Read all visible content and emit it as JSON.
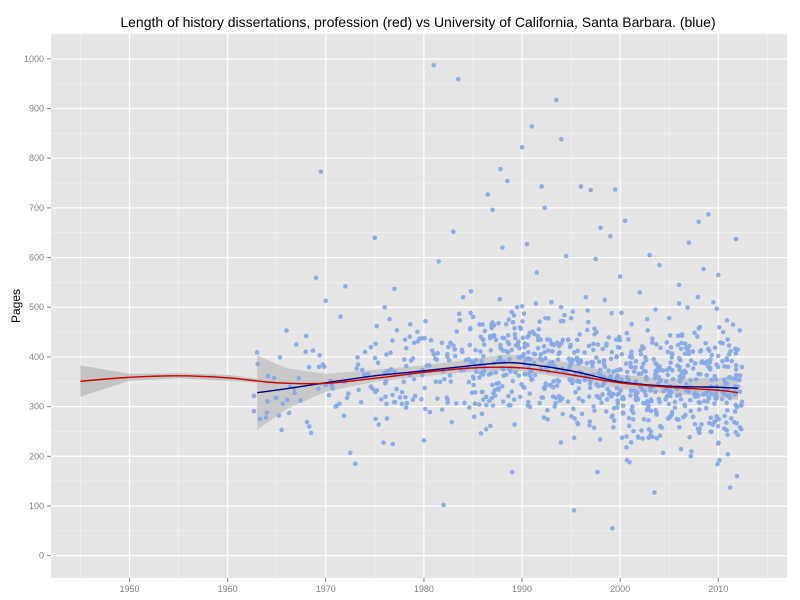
{
  "chart_data": {
    "type": "scatter",
    "title": "Length of history dissertations, profession (red) vs University of California, Santa Barbara. (blue)",
    "xlabel": "",
    "ylabel": "Pages",
    "xlim": [
      1942,
      2017
    ],
    "ylim": [
      -45,
      1050
    ],
    "x_ticks": [
      1950,
      1960,
      1970,
      1980,
      1990,
      2000,
      2010
    ],
    "y_ticks": [
      0,
      100,
      200,
      300,
      400,
      500,
      600,
      700,
      800,
      900,
      1000
    ],
    "grid": true,
    "legend": "none",
    "colors": {
      "panel": "#e5e5e5",
      "grid_major": "#ffffff",
      "grid_minor": "#f2f2f2",
      "points": "#86a9e8",
      "profession_line": "#cc0000",
      "ucsb_line": "#000080",
      "confidence_band": "#bdbdbd"
    },
    "series": [
      {
        "kind": "smooth",
        "color": "#cc0000",
        "x": [
          1945,
          1950,
          1955,
          1960,
          1965,
          1970,
          1975,
          1980,
          1985,
          1990,
          1995,
          2000,
          2005,
          2010,
          2012
        ],
        "y": [
          351,
          359,
          362,
          358,
          348,
          347,
          357,
          369,
          378,
          378,
          364,
          348,
          339,
          333,
          328
        ],
        "band_lower": [
          320,
          352,
          357,
          352,
          345,
          344,
          354,
          367,
          375,
          375,
          361,
          345,
          336,
          328,
          320
        ],
        "band_upper": [
          383,
          366,
          367,
          364,
          351,
          350,
          360,
          371,
          381,
          381,
          367,
          351,
          342,
          338,
          336
        ]
      },
      {
        "kind": "smooth",
        "color": "#000080",
        "x": [
          1963,
          1966,
          1970,
          1975,
          1980,
          1985,
          1988,
          1990,
          1995,
          2000,
          2005,
          2010,
          2012
        ],
        "y": [
          328,
          336,
          348,
          362,
          372,
          383,
          388,
          387,
          372,
          350,
          341,
          339,
          337
        ],
        "band_lower": [
          253,
          295,
          330,
          350,
          361,
          370,
          372,
          371,
          356,
          336,
          326,
          320,
          313
        ],
        "band_upper": [
          403,
          377,
          366,
          374,
          383,
          396,
          404,
          403,
          388,
          364,
          356,
          358,
          361
        ]
      }
    ],
    "points": {
      "highlighted": [
        [
          1963,
          409
        ],
        [
          1965.5,
          253
        ],
        [
          1966,
          453
        ],
        [
          1967,
          425
        ],
        [
          1968,
          442
        ],
        [
          1968.5,
          247
        ],
        [
          1969,
          559
        ],
        [
          1969.5,
          773
        ],
        [
          1970,
          513
        ],
        [
          1970.5,
          352
        ],
        [
          1971,
          300
        ],
        [
          1971.5,
          481
        ],
        [
          1972,
          542
        ],
        [
          1972.5,
          207
        ],
        [
          1973,
          185
        ],
        [
          1974,
          410
        ],
        [
          1975,
          640
        ],
        [
          1975.2,
          462
        ],
        [
          1976,
          500
        ],
        [
          1976.5,
          476
        ],
        [
          1977,
          537
        ],
        [
          1978,
          395
        ],
        [
          1979,
          355
        ],
        [
          1980,
          232
        ],
        [
          1981,
          987
        ],
        [
          1981.5,
          592
        ],
        [
          1982.5,
          420
        ],
        [
          1982,
          102
        ],
        [
          1983,
          652
        ],
        [
          1983.5,
          959
        ],
        [
          1984,
          520
        ],
        [
          1985,
          360
        ],
        [
          1986,
          435
        ],
        [
          1986.5,
          727
        ],
        [
          1987,
          696
        ],
        [
          1987.8,
          778
        ],
        [
          1988,
          620
        ],
        [
          1988.5,
          754
        ],
        [
          1989,
          168
        ],
        [
          1989.5,
          500
        ],
        [
          1990,
          822
        ],
        [
          1990.5,
          627
        ],
        [
          1991,
          864
        ],
        [
          1991.5,
          570
        ],
        [
          1992,
          743
        ],
        [
          1992.3,
          700
        ],
        [
          1993,
          510
        ],
        [
          1993.5,
          917
        ],
        [
          1994,
          838
        ],
        [
          1994.5,
          603
        ],
        [
          1995,
          478
        ],
        [
          1995.3,
          91
        ],
        [
          1996,
          743
        ],
        [
          1996.5,
          520
        ],
        [
          1997,
          736
        ],
        [
          1997.5,
          597
        ],
        [
          1998,
          660
        ],
        [
          1999,
          643
        ],
        [
          1999.2,
          55
        ],
        [
          1999.5,
          737
        ],
        [
          2000,
          562
        ],
        [
          2000.5,
          674
        ],
        [
          2001,
          400
        ],
        [
          2002,
          530
        ],
        [
          2002.5,
          330
        ],
        [
          2003,
          605
        ],
        [
          2003.5,
          127
        ],
        [
          2004,
          585
        ],
        [
          2005,
          478
        ],
        [
          2006,
          545
        ],
        [
          2007,
          630
        ],
        [
          2008,
          672
        ],
        [
          2008.5,
          577
        ],
        [
          2009,
          687
        ],
        [
          2009.5,
          510
        ],
        [
          2010,
          565
        ],
        [
          2010.5,
          450
        ],
        [
          2011,
          380
        ],
        [
          2011.2,
          137
        ],
        [
          2011.5,
          465
        ],
        [
          2011.8,
          637
        ],
        [
          2011.9,
          160
        ],
        [
          2012,
          243
        ]
      ]
    }
  }
}
